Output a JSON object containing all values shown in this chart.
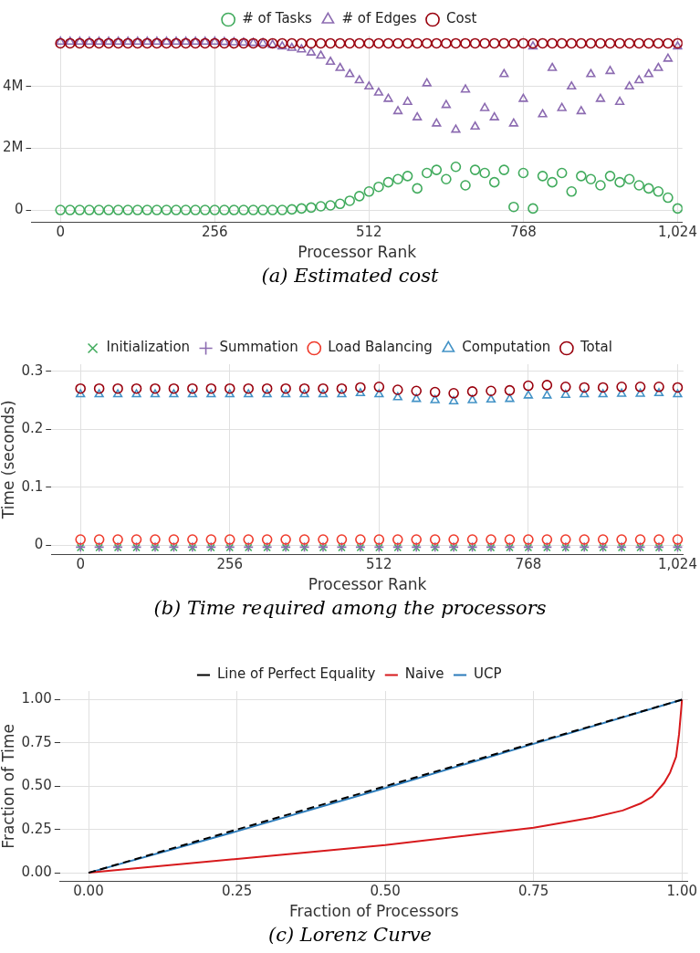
{
  "chart_data": [
    {
      "type": "scatter",
      "title": "(a) Estimated cost",
      "xlabel": "Processor Rank",
      "legend": "top",
      "grid": true,
      "x": [
        0,
        16,
        32,
        48,
        64,
        80,
        96,
        112,
        128,
        144,
        160,
        176,
        192,
        208,
        224,
        240,
        256,
        272,
        288,
        304,
        320,
        336,
        352,
        368,
        384,
        400,
        416,
        432,
        448,
        464,
        480,
        496,
        512,
        528,
        544,
        560,
        576,
        592,
        608,
        624,
        640,
        656,
        672,
        688,
        704,
        720,
        736,
        752,
        768,
        784,
        800,
        816,
        832,
        848,
        864,
        880,
        896,
        912,
        928,
        944,
        960,
        976,
        992,
        1008,
        1024
      ],
      "xlim": [
        -48,
        1032
      ],
      "xticks": [
        0,
        256,
        512,
        768,
        {
          "value": 1024,
          "label": "1,024"
        }
      ],
      "ylim": [
        -400000,
        5650000
      ],
      "yticks": [
        0,
        {
          "value": 2000000,
          "label": "2M"
        },
        {
          "value": 4000000,
          "label": "4M"
        }
      ],
      "series": [
        {
          "name": "# of Tasks",
          "color": "#41ab5d",
          "marker": "circle",
          "values": [
            0,
            0,
            0,
            0,
            0,
            0,
            0,
            0,
            0,
            0,
            0,
            0,
            0,
            0,
            0,
            0,
            0,
            0,
            0,
            0,
            0,
            0,
            0,
            0,
            20000,
            50000,
            80000,
            120000,
            150000,
            200000,
            300000,
            450000,
            600000,
            750000,
            900000,
            1000000,
            1100000,
            700000,
            1200000,
            1300000,
            1000000,
            1400000,
            800000,
            1300000,
            1200000,
            900000,
            1300000,
            100000,
            1200000,
            50000,
            1100000,
            900000,
            1200000,
            600000,
            1100000,
            1000000,
            800000,
            1100000,
            900000,
            1000000,
            800000,
            700000,
            600000,
            400000,
            50000
          ]
        },
        {
          "name": "# of Edges",
          "color": "#8c6bb1",
          "marker": "triangle",
          "values": [
            5450000,
            5450000,
            5450000,
            5450000,
            5450000,
            5450000,
            5450000,
            5450000,
            5450000,
            5450000,
            5450000,
            5450000,
            5450000,
            5450000,
            5450000,
            5450000,
            5450000,
            5440000,
            5430000,
            5420000,
            5410000,
            5400000,
            5350000,
            5300000,
            5250000,
            5200000,
            5100000,
            5000000,
            4800000,
            4600000,
            4400000,
            4200000,
            4000000,
            3800000,
            3600000,
            3200000,
            3500000,
            3000000,
            4100000,
            2800000,
            3400000,
            2600000,
            3900000,
            2700000,
            3300000,
            3000000,
            4400000,
            2800000,
            3600000,
            5300000,
            3100000,
            4600000,
            3300000,
            4000000,
            3200000,
            4400000,
            3600000,
            4500000,
            3500000,
            4000000,
            4200000,
            4400000,
            4600000,
            4900000,
            5300000
          ]
        },
        {
          "name": "Cost",
          "color": "#99000d",
          "marker": "circle",
          "values": [
            5400000,
            5400000,
            5400000,
            5400000,
            5400000,
            5400000,
            5400000,
            5400000,
            5400000,
            5400000,
            5400000,
            5400000,
            5400000,
            5400000,
            5400000,
            5400000,
            5400000,
            5400000,
            5400000,
            5400000,
            5400000,
            5400000,
            5400000,
            5400000,
            5400000,
            5400000,
            5400000,
            5400000,
            5400000,
            5400000,
            5400000,
            5400000,
            5400000,
            5400000,
            5400000,
            5400000,
            5400000,
            5400000,
            5400000,
            5400000,
            5400000,
            5400000,
            5400000,
            5400000,
            5400000,
            5400000,
            5400000,
            5400000,
            5400000,
            5400000,
            5400000,
            5400000,
            5400000,
            5400000,
            5400000,
            5400000,
            5400000,
            5400000,
            5400000,
            5400000,
            5400000,
            5400000,
            5400000,
            5400000,
            5400000
          ]
        }
      ]
    },
    {
      "type": "scatter",
      "title": "(b) Time required among the processors",
      "xlabel": "Processor Rank",
      "ylabel": "Time (seconds)",
      "legend": "top",
      "grid": true,
      "x": [
        0,
        32,
        64,
        96,
        128,
        160,
        192,
        224,
        256,
        288,
        320,
        352,
        384,
        416,
        448,
        480,
        512,
        544,
        576,
        608,
        640,
        672,
        704,
        736,
        768,
        800,
        832,
        864,
        896,
        928,
        960,
        992,
        1024
      ],
      "xlim": [
        -50,
        1034
      ],
      "xticks": [
        0,
        256,
        512,
        768,
        {
          "value": 1024,
          "label": "1,024"
        }
      ],
      "ylim": [
        -0.016,
        0.312
      ],
      "yticks": [
        0,
        0.1,
        0.2,
        0.3
      ],
      "series": [
        {
          "name": "Initialization",
          "color": "#41ab5d",
          "marker": "cross",
          "values": [
            -0.004,
            -0.004,
            -0.004,
            -0.004,
            -0.004,
            -0.004,
            -0.004,
            -0.004,
            -0.004,
            -0.004,
            -0.004,
            -0.004,
            -0.004,
            -0.004,
            -0.004,
            -0.004,
            -0.004,
            -0.004,
            -0.004,
            -0.004,
            -0.004,
            -0.004,
            -0.004,
            -0.004,
            -0.004,
            -0.004,
            -0.004,
            -0.004,
            -0.004,
            -0.004,
            -0.004,
            -0.004,
            -0.004
          ]
        },
        {
          "name": "Summation",
          "color": "#8c6bb1",
          "marker": "plus",
          "values": [
            -0.003,
            -0.003,
            -0.003,
            -0.003,
            -0.003,
            -0.003,
            -0.003,
            -0.003,
            -0.003,
            -0.003,
            -0.003,
            -0.003,
            -0.003,
            -0.003,
            -0.003,
            -0.003,
            -0.003,
            -0.003,
            -0.003,
            -0.003,
            -0.003,
            -0.003,
            -0.003,
            -0.003,
            -0.003,
            -0.003,
            -0.003,
            -0.003,
            -0.003,
            -0.003,
            -0.003,
            -0.003,
            -0.003
          ]
        },
        {
          "name": "Load Balancing",
          "color": "#ef3b2c",
          "marker": "circle",
          "values": [
            0.01,
            0.01,
            0.01,
            0.01,
            0.01,
            0.01,
            0.01,
            0.01,
            0.01,
            0.01,
            0.01,
            0.01,
            0.01,
            0.01,
            0.01,
            0.01,
            0.01,
            0.01,
            0.01,
            0.01,
            0.01,
            0.01,
            0.01,
            0.01,
            0.01,
            0.01,
            0.01,
            0.01,
            0.01,
            0.01,
            0.01,
            0.01,
            0.01
          ]
        },
        {
          "name": "Computation",
          "color": "#4292c6",
          "marker": "triangle",
          "values": [
            0.26,
            0.26,
            0.26,
            0.26,
            0.26,
            0.26,
            0.26,
            0.26,
            0.26,
            0.26,
            0.26,
            0.26,
            0.26,
            0.26,
            0.26,
            0.262,
            0.26,
            0.255,
            0.252,
            0.25,
            0.248,
            0.25,
            0.251,
            0.252,
            0.258,
            0.258,
            0.259,
            0.26,
            0.26,
            0.261,
            0.261,
            0.262,
            0.26
          ]
        },
        {
          "name": "Total",
          "color": "#99000d",
          "marker": "circle",
          "values": [
            0.27,
            0.27,
            0.27,
            0.27,
            0.27,
            0.27,
            0.27,
            0.27,
            0.27,
            0.27,
            0.27,
            0.27,
            0.27,
            0.27,
            0.27,
            0.272,
            0.273,
            0.268,
            0.266,
            0.264,
            0.262,
            0.265,
            0.266,
            0.267,
            0.275,
            0.276,
            0.273,
            0.272,
            0.272,
            0.273,
            0.273,
            0.273,
            0.272
          ]
        }
      ]
    },
    {
      "type": "line",
      "title": "(c) Lorenz Curve",
      "xlabel": "Fraction of Processors",
      "ylabel": "Fraction of Time",
      "legend": "top",
      "grid": true,
      "marker": "none",
      "xlim": [
        -0.048,
        1.01
      ],
      "xticks": [
        {
          "value": 0,
          "label": "0.00"
        },
        {
          "value": 0.25,
          "label": "0.25"
        },
        {
          "value": 0.5,
          "label": "0.50"
        },
        {
          "value": 0.75,
          "label": "0.75"
        },
        {
          "value": 1,
          "label": "1.00"
        }
      ],
      "ylim": [
        -0.05,
        1.05
      ],
      "yticks": [
        {
          "value": 0,
          "label": "0.00"
        },
        {
          "value": 0.25,
          "label": "0.25"
        },
        {
          "value": 0.5,
          "label": "0.50"
        },
        {
          "value": 0.75,
          "label": "0.75"
        },
        {
          "value": 1,
          "label": "1.00"
        }
      ],
      "series": [
        {
          "name": "Line of Perfect Equality",
          "color": "#000000",
          "line_style": "dashed",
          "x": [
            0,
            1
          ],
          "values": [
            0,
            1
          ]
        },
        {
          "name": "Naive",
          "color": "#d7191c",
          "line_style": "solid",
          "x": [
            0,
            0.25,
            0.5,
            0.75,
            0.85,
            0.9,
            0.93,
            0.95,
            0.97,
            0.98,
            0.99,
            0.995,
            1
          ],
          "values": [
            0,
            0.08,
            0.16,
            0.26,
            0.32,
            0.36,
            0.4,
            0.44,
            0.52,
            0.58,
            0.67,
            0.8,
            1
          ]
        },
        {
          "name": "UCP",
          "color": "#2b7bba",
          "line_style": "solid",
          "x": [
            0,
            0.25,
            0.5,
            0.75,
            1
          ],
          "values": [
            0,
            0.24,
            0.49,
            0.745,
            1
          ]
        }
      ]
    }
  ]
}
